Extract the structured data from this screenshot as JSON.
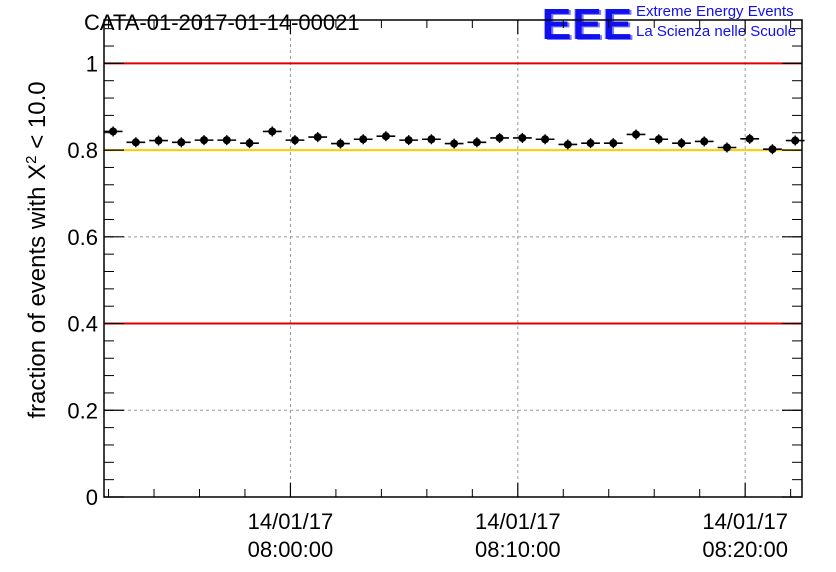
{
  "chart_data": {
    "type": "scatter",
    "title": "CATA-01-2017-01-14-00021",
    "ylabel_prefix": "fraction of events with ",
    "ylabel_symbol": "X",
    "ylabel_sup": "2",
    "ylabel_suffix": " < 10.0",
    "ylim": [
      0,
      1.1
    ],
    "y_ticks": [
      0,
      0.2,
      0.4,
      0.6,
      0.8,
      1
    ],
    "y_tick_labels": [
      "0",
      "0.2",
      "0.4",
      "0.6",
      "0.8",
      "1"
    ],
    "xlim_minutes": [
      -8.2,
      22.5
    ],
    "x_ticks_minutes": [
      0,
      10,
      20
    ],
    "x_tick_labels": [
      {
        "date": "14/01/17",
        "time": "08:00:00"
      },
      {
        "date": "14/01/17",
        "time": "08:10:00"
      },
      {
        "date": "14/01/17",
        "time": "08:20:00"
      }
    ],
    "grid": true,
    "reference_lines": [
      {
        "y": 1.0,
        "color": "#dd0000"
      },
      {
        "y": 0.8,
        "color": "#ffcc00"
      },
      {
        "y": 0.4,
        "color": "#dd0000"
      }
    ],
    "bin_width_minutes": 1,
    "series": [
      {
        "x_minutes": [
          -7.8,
          -6.8,
          -5.8,
          -4.8,
          -3.8,
          -2.8,
          -1.8,
          -0.8,
          0.2,
          1.2,
          2.2,
          3.2,
          4.2,
          5.2,
          6.2,
          7.2,
          8.2,
          9.2,
          10.2,
          11.2,
          12.2,
          13.2,
          14.2,
          15.2,
          16.2,
          17.2,
          18.2,
          19.2,
          20.2,
          21.2,
          22.2
        ],
        "values": [
          0.843,
          0.818,
          0.822,
          0.818,
          0.823,
          0.823,
          0.816,
          0.843,
          0.823,
          0.83,
          0.815,
          0.825,
          0.832,
          0.823,
          0.825,
          0.815,
          0.818,
          0.828,
          0.828,
          0.825,
          0.813,
          0.816,
          0.816,
          0.836,
          0.825,
          0.816,
          0.82,
          0.806,
          0.826,
          0.802,
          0.822
        ],
        "color": "#000000"
      }
    ]
  },
  "logo": {
    "mark": "EEE",
    "line1": "Extreme Energy Events",
    "line2": "La Scienza nelle Scuole"
  }
}
